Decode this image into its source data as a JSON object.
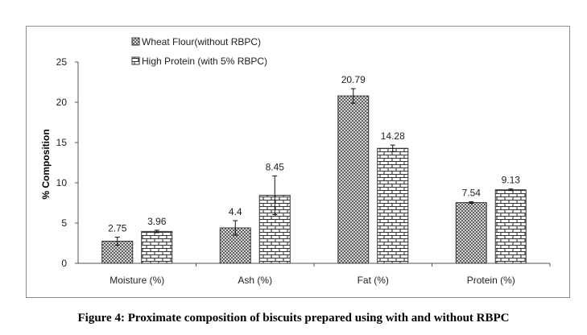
{
  "caption": "Figure 4: Proximate composition of biscuits prepared using with and without RBPC",
  "chart_data": {
    "type": "bar",
    "ylabel": "% Composition",
    "xlabel": "",
    "ylim": [
      0,
      25
    ],
    "yticks": [
      0,
      5,
      10,
      15,
      20,
      25
    ],
    "grid": false,
    "legend_position": "top-left",
    "categories": [
      "Moisture (%)",
      "Ash (%)",
      "Fat (%)",
      "Protein (%)"
    ],
    "series": [
      {
        "name": "Wheat Flour(without RBPC)",
        "pattern": "crosshatch",
        "values": [
          2.75,
          4.4,
          20.79,
          7.54
        ],
        "labels": [
          "2.75",
          "4.4",
          "20.79",
          "7.54"
        ],
        "errors": [
          0.5,
          0.9,
          0.9,
          0.1
        ]
      },
      {
        "name": "High Protein (with 5% RBPC)",
        "pattern": "brick",
        "values": [
          3.96,
          8.45,
          14.28,
          9.13
        ],
        "labels": [
          "3.96",
          "8.45",
          "14.28",
          "9.13"
        ],
        "errors": [
          0.15,
          2.4,
          0.4,
          0.1
        ]
      }
    ]
  }
}
